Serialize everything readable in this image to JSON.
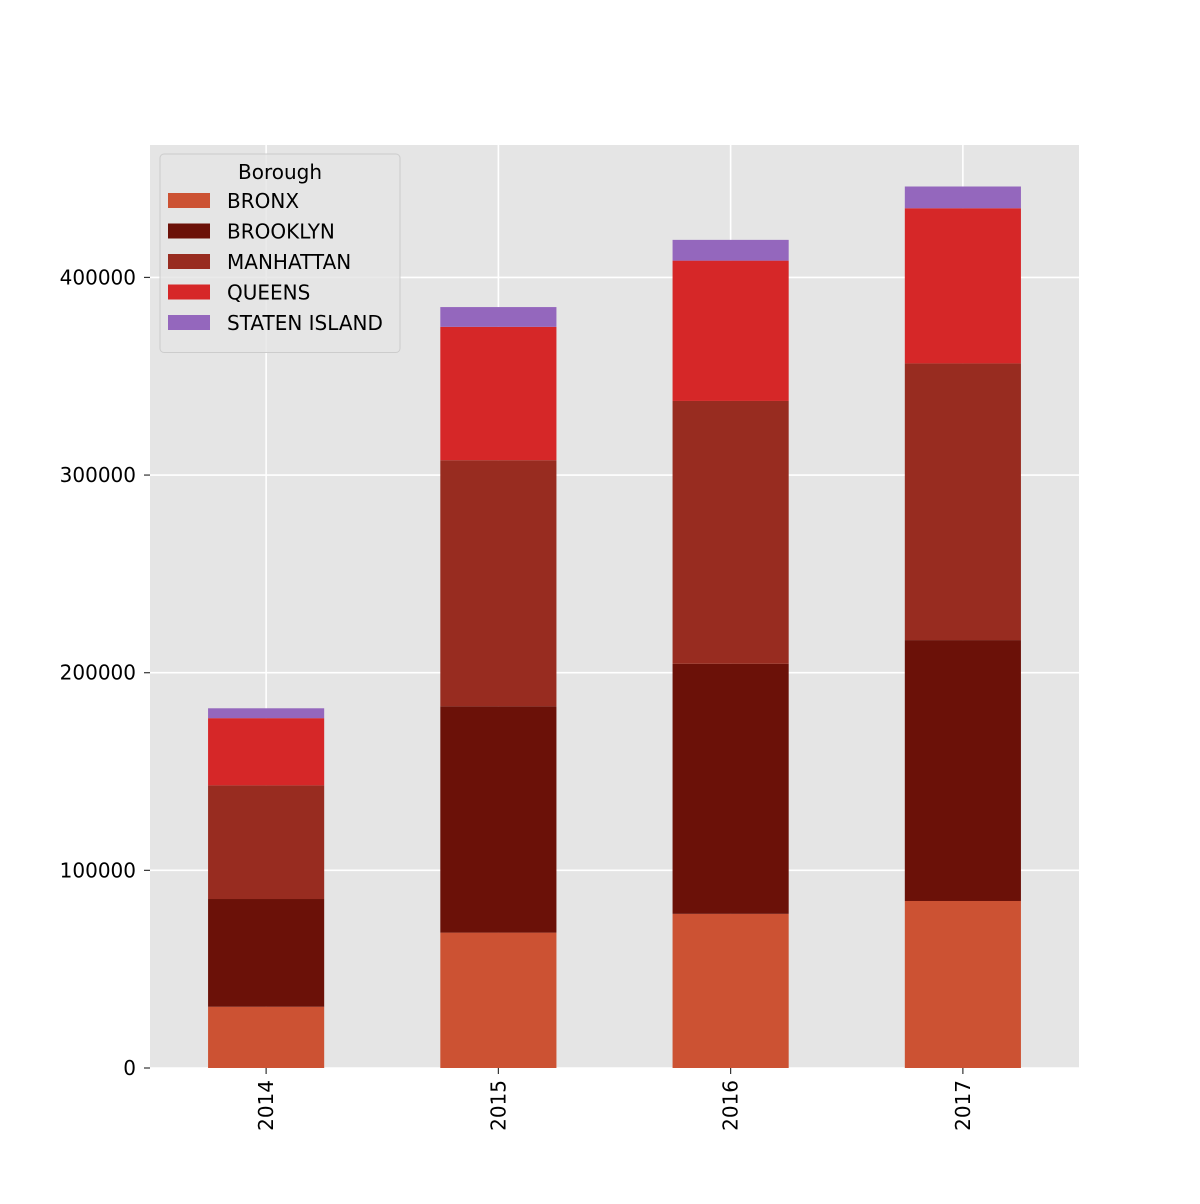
{
  "chart_data": {
    "type": "bar",
    "stacked": true,
    "categories": [
      "2014",
      "2015",
      "2016",
      "2017"
    ],
    "series": [
      {
        "name": "BRONX",
        "color": "#CC5233",
        "values": [
          31000,
          68500,
          78000,
          84500
        ]
      },
      {
        "name": "BROOKLYN",
        "color": "#6B1108",
        "values": [
          54500,
          114500,
          126500,
          132000
        ]
      },
      {
        "name": "MANHATTAN",
        "color": "#982C20",
        "values": [
          57500,
          124500,
          133000,
          140000
        ]
      },
      {
        "name": "QUEENS",
        "color": "#D62728",
        "values": [
          34000,
          67500,
          71000,
          78500
        ]
      },
      {
        "name": "STATEN ISLAND",
        "color": "#9467BD",
        "values": [
          5000,
          10000,
          10500,
          11000
        ]
      }
    ],
    "yticks": [
      0,
      100000,
      200000,
      300000,
      400000
    ],
    "ylim": [
      0,
      467000
    ],
    "legend": {
      "title": "Borough",
      "placement": "top-left"
    },
    "grid": true,
    "style": {
      "plot_background": "#E5E5E5",
      "grid_color": "#FFFFFF"
    }
  }
}
